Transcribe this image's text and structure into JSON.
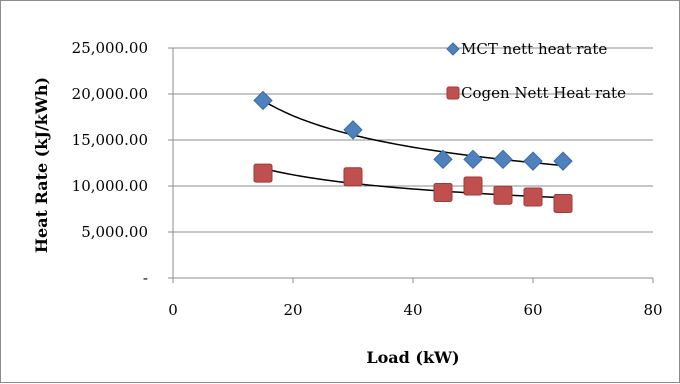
{
  "chart_data": {
    "type": "scatter",
    "xlabel": "Load (kW)",
    "ylabel": "Heat Rate (kJ/kWh)",
    "xlim": [
      0,
      80
    ],
    "ylim": [
      0,
      25000
    ],
    "x_ticks": [
      0,
      20,
      40,
      60,
      80
    ],
    "x_tick_labels": [
      "0",
      "20",
      "40",
      "60",
      "80"
    ],
    "y_ticks": [
      0,
      5000,
      10000,
      15000,
      20000,
      25000
    ],
    "y_tick_labels": [
      "-",
      "5,000.00",
      "10,000.00",
      "15,000.00",
      "20,000.00",
      "25,000.00"
    ],
    "grid": "horizontal",
    "legend_position": "top-right",
    "series": [
      {
        "name": "MCT nett heat rate",
        "marker": "diamond",
        "color": "#4f81bd",
        "trendline": "power",
        "points": [
          {
            "x": 15,
            "y": 19300
          },
          {
            "x": 30,
            "y": 16100
          },
          {
            "x": 45,
            "y": 12900
          },
          {
            "x": 50,
            "y": 12900
          },
          {
            "x": 55,
            "y": 12900
          },
          {
            "x": 60,
            "y": 12700
          },
          {
            "x": 65,
            "y": 12700
          }
        ]
      },
      {
        "name": "Cogen Nett Heat rate",
        "marker": "square",
        "color": "#c0504d",
        "trendline": "power",
        "points": [
          {
            "x": 15,
            "y": 11400
          },
          {
            "x": 30,
            "y": 11000
          },
          {
            "x": 45,
            "y": 9300
          },
          {
            "x": 50,
            "y": 10000
          },
          {
            "x": 55,
            "y": 9000
          },
          {
            "x": 60,
            "y": 8800
          },
          {
            "x": 65,
            "y": 8100
          }
        ]
      }
    ]
  }
}
